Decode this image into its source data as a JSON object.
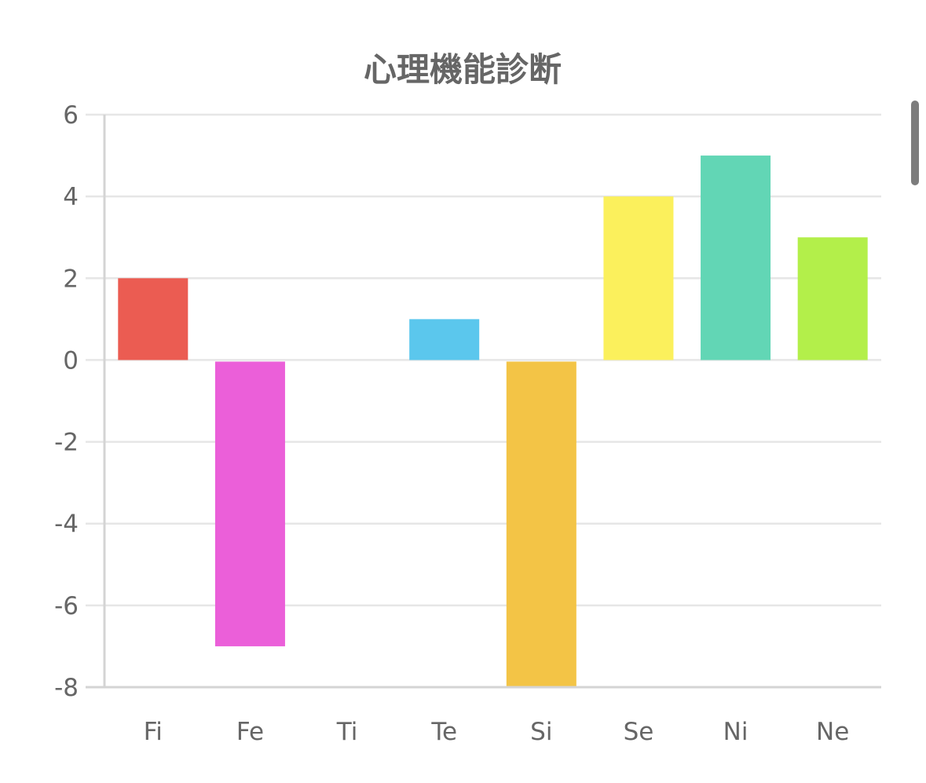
{
  "chart_data": {
    "type": "bar",
    "title": "心理機能診断",
    "categories": [
      "Fi",
      "Fe",
      "Ti",
      "Te",
      "Si",
      "Se",
      "Ni",
      "Ne"
    ],
    "values": [
      2,
      -7,
      0,
      1,
      -8,
      4,
      5,
      3
    ],
    "colors": [
      "#eb5c52",
      "#eb5fd9",
      "#d9d9d9",
      "#5bc7ed",
      "#f3c446",
      "#fbf05c",
      "#62d6b5",
      "#b3ef4a"
    ],
    "ylim": [
      -8,
      6
    ],
    "yticks": [
      6,
      4,
      2,
      0,
      -2,
      -4,
      -6,
      -8
    ],
    "grid": true,
    "legend": "none"
  },
  "scrollbar": {
    "color": "#7d7d7d"
  }
}
